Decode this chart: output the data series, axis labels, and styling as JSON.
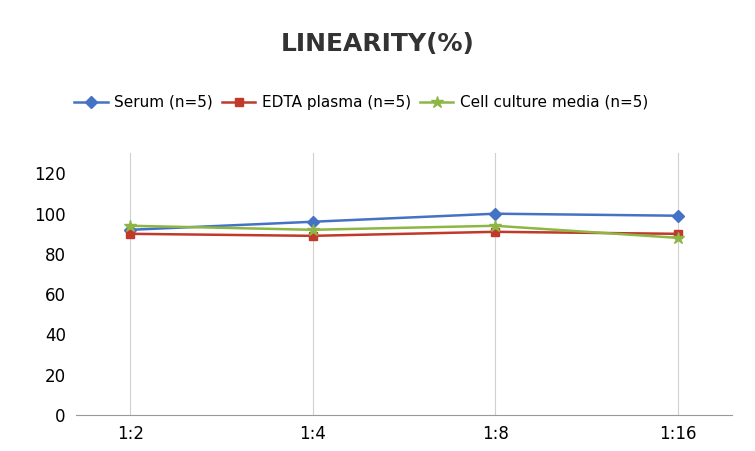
{
  "title": "LINEARITY(%)",
  "x_labels": [
    "1:2",
    "1:4",
    "1:8",
    "1:16"
  ],
  "x_positions": [
    0,
    1,
    2,
    3
  ],
  "series": [
    {
      "label": "Serum (n=5)",
      "values": [
        92,
        96,
        100,
        99
      ],
      "color": "#4472C4",
      "marker": "D",
      "markersize": 6,
      "linewidth": 1.8
    },
    {
      "label": "EDTA plasma (n=5)",
      "values": [
        90,
        89,
        91,
        90
      ],
      "color": "#C0392B",
      "marker": "s",
      "markersize": 6,
      "linewidth": 1.8
    },
    {
      "label": "Cell culture media (n=5)",
      "values": [
        94,
        92,
        94,
        88
      ],
      "color": "#8DB645",
      "marker": "*",
      "markersize": 9,
      "linewidth": 1.8
    }
  ],
  "ylim": [
    0,
    130
  ],
  "yticks": [
    0,
    20,
    40,
    60,
    80,
    100,
    120
  ],
  "background_color": "#FFFFFF",
  "grid_color": "#D0D0D0",
  "title_fontsize": 18,
  "legend_fontsize": 11,
  "tick_fontsize": 12
}
